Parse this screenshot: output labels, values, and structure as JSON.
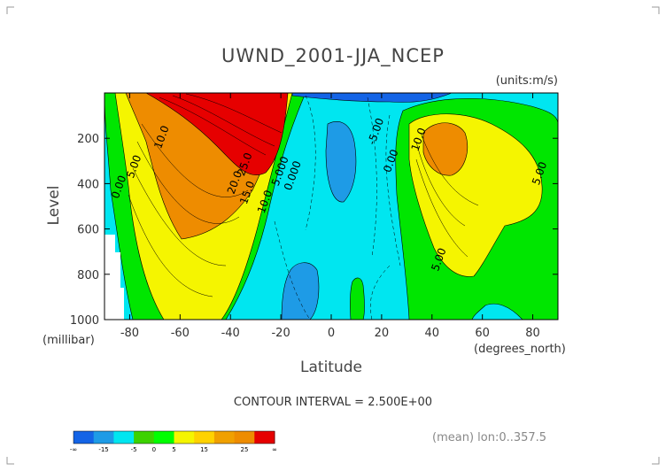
{
  "chart_data": {
    "type": "contour",
    "title": "UWND_2001-JJA_NCEP",
    "units": "(units:m/s)",
    "xlabel": "Latitude",
    "x_unit": "(degrees_north)",
    "ylabel": "Level",
    "y_unit": "(millibar)",
    "xlim": [
      -90,
      90
    ],
    "ylim": [
      1000,
      0
    ],
    "x_ticks": [
      "-80",
      "-60",
      "-40",
      "-20",
      "0",
      "20",
      "40",
      "60",
      "80"
    ],
    "x_tick_values": [
      -80,
      -60,
      -40,
      -20,
      0,
      20,
      40,
      60,
      80
    ],
    "y_ticks": [
      "200",
      "400",
      "600",
      "800",
      "1000"
    ],
    "y_tick_values": [
      200,
      400,
      600,
      800,
      1000
    ],
    "contour_interval_text": "CONTOUR INTERVAL = 2.500E+00",
    "footer_note": "(mean) lon:0..357.5",
    "contour_labels": [
      {
        "text": "10.0",
        "x": -66,
        "y": 200
      },
      {
        "text": "5.00",
        "x": -77,
        "y": 330
      },
      {
        "text": "0.00",
        "x": -83,
        "y": 420
      },
      {
        "text": "25.0",
        "x": -33,
        "y": 320
      },
      {
        "text": "20.0",
        "x": -37,
        "y": 400
      },
      {
        "text": "15.0",
        "x": -32,
        "y": 445
      },
      {
        "text": "10.0",
        "x": -25,
        "y": 485
      },
      {
        "text": "5.000",
        "x": -19,
        "y": 350
      },
      {
        "text": "0.000",
        "x": -14,
        "y": 370
      },
      {
        "text": "-5.00",
        "x": 19,
        "y": 175
      },
      {
        "text": "0.00",
        "x": 25,
        "y": 305
      },
      {
        "text": "10.0",
        "x": 36,
        "y": 210
      },
      {
        "text": "5.00",
        "x": 84,
        "y": 360
      },
      {
        "text": "5.00",
        "x": 44,
        "y": 740
      }
    ],
    "colorbar": {
      "labels": [
        "-∞",
        "-15",
        "-5",
        "0",
        "5",
        "15",
        "25",
        "∞"
      ],
      "colors": [
        "#1464e6",
        "#1e9be6",
        "#00e6f0",
        "#3cd200",
        "#00ff00",
        "#f5f500",
        "#ffd200",
        "#f0a000",
        "#ee8c00",
        "#e60000"
      ]
    }
  }
}
